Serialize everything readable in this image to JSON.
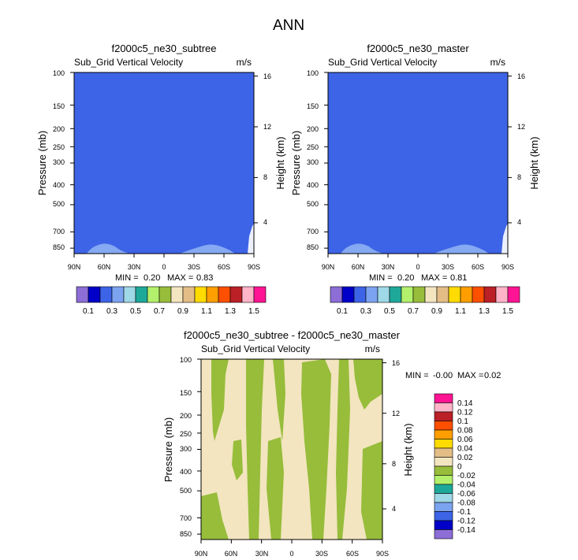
{
  "figure_title": "ANN",
  "chart_data": [
    {
      "type": "heatmap",
      "title": "f2000c5_ne30_subtree",
      "subtitle": "Sub_Grid Vertical Velocity",
      "units": "m/s",
      "ylabel": "Pressure (mb)",
      "ylabel_right": "Height (km)",
      "x_ticks": [
        "90N",
        "60N",
        "30N",
        "0",
        "30S",
        "60S",
        "90S"
      ],
      "y_ticks": [
        "100",
        "150",
        "200",
        "250",
        "300",
        "400",
        "500",
        "700",
        "850"
      ],
      "y_right_ticks": [
        "16",
        "12",
        "8",
        "4"
      ],
      "min_label": "MIN =",
      "min_value": "0.20",
      "max_label": "MAX =",
      "max_value": "0.83",
      "ylim": [
        1000,
        100
      ],
      "fill_color": "#3d64e6",
      "accent_color": "#85a9f2",
      "colorbar_labels": [
        "0.1",
        "0.3",
        "0.5",
        "0.7",
        "0.9",
        "1.1",
        "1.3",
        "1.5"
      ]
    },
    {
      "type": "heatmap",
      "title": "f2000c5_ne30_master",
      "subtitle": "Sub_Grid Vertical Velocity",
      "units": "m/s",
      "ylabel": "Pressure (mb)",
      "ylabel_right": "Height (km)",
      "x_ticks": [
        "90N",
        "60N",
        "30N",
        "0",
        "30S",
        "60S",
        "90S"
      ],
      "y_ticks": [
        "100",
        "150",
        "200",
        "250",
        "300",
        "400",
        "500",
        "700",
        "850"
      ],
      "y_right_ticks": [
        "16",
        "12",
        "8",
        "4"
      ],
      "min_label": "MIN =",
      "min_value": "0.20",
      "max_label": "MAX =",
      "max_value": "0.81",
      "ylim": [
        1000,
        100
      ],
      "fill_color": "#3d64e6",
      "accent_color": "#85a9f2",
      "colorbar_labels": [
        "0.1",
        "0.3",
        "0.5",
        "0.7",
        "0.9",
        "1.1",
        "1.3",
        "1.5"
      ]
    },
    {
      "type": "heatmap",
      "title": "f2000c5_ne30_subtree - f2000c5_ne30_master",
      "subtitle": "Sub_Grid Vertical Velocity",
      "units": "m/s",
      "ylabel": "Pressure (mb)",
      "ylabel_right": "Height (km)",
      "x_ticks": [
        "90N",
        "60N",
        "30N",
        "0",
        "30S",
        "60S",
        "90S"
      ],
      "y_ticks": [
        "100",
        "150",
        "200",
        "250",
        "300",
        "400",
        "500",
        "700",
        "850"
      ],
      "y_right_ticks": [
        "16",
        "12",
        "8",
        "4"
      ],
      "min_label": "MIN =",
      "min_value": "-0.00",
      "max_label": "MAX =",
      "max_value": "0.02",
      "ylim": [
        1000,
        100
      ],
      "fill_color": "#f3e5bf",
      "accent_color": "#97bd3b",
      "colorbar_labels": [
        "0.14",
        "0.12",
        "0.1",
        "0.08",
        "0.06",
        "0.04",
        "0.02",
        "0",
        "-0.02",
        "-0.04",
        "-0.06",
        "-0.08",
        "-0.1",
        "-0.12",
        "-0.14"
      ]
    }
  ],
  "colorbar_colors_abs": [
    "#8d6dd6",
    "#0000c8",
    "#3d64e6",
    "#7ba3f0",
    "#9fd8e6",
    "#1ea89a",
    "#b3f06b",
    "#97bd3b",
    "#f3e5bf",
    "#e3bc86",
    "#ffdb00",
    "#ff9e00",
    "#ff4f00",
    "#bb2026",
    "#ffb4c8",
    "#ff1493"
  ],
  "colorbar_colors_diff": [
    "#ff1493",
    "#ffb4c8",
    "#bb2026",
    "#ff4f00",
    "#ff9e00",
    "#ffdb00",
    "#e3bc86",
    "#f3e5bf",
    "#97bd3b",
    "#b3f06b",
    "#1ea89a",
    "#9fd8e6",
    "#7ba3f0",
    "#3d64e6",
    "#0000c8",
    "#8d6dd6"
  ]
}
